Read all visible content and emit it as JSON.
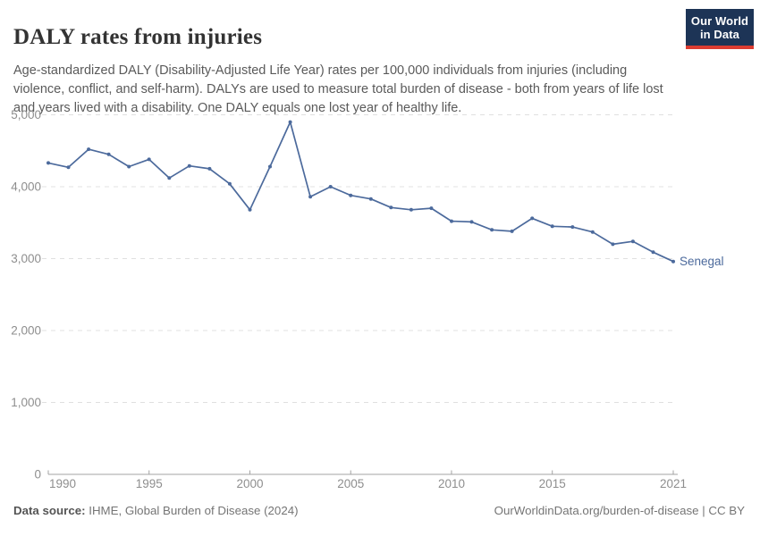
{
  "header": {
    "title": "DALY rates from injuries",
    "subtitle": "Age-standardized DALY (Disability-Adjusted Life Year) rates per 100,000 individuals from injuries (including violence, conflict, and self-harm). DALYs are used to measure total burden of disease - both from years of life lost and years lived with a disability. One DALY equals one lost year of healthy life."
  },
  "logo": {
    "line1": "Our World",
    "line2": "in Data",
    "bg_color": "#1d3456",
    "bar_color": "#dc3c31"
  },
  "chart_data": {
    "type": "line",
    "title": "DALY rates from injuries",
    "series": [
      {
        "name": "Senegal",
        "color": "#4C6A9C",
        "x": [
          1990,
          1991,
          1992,
          1993,
          1994,
          1995,
          1996,
          1997,
          1998,
          1999,
          2000,
          2001,
          2002,
          2003,
          2004,
          2005,
          2006,
          2007,
          2008,
          2009,
          2010,
          2011,
          2012,
          2013,
          2014,
          2015,
          2016,
          2017,
          2018,
          2019,
          2020,
          2021
        ],
        "values": [
          4330,
          4270,
          4520,
          4450,
          4280,
          4380,
          4120,
          4290,
          4250,
          4040,
          3680,
          4280,
          4900,
          3860,
          4000,
          3880,
          3830,
          3710,
          3680,
          3700,
          3520,
          3510,
          3400,
          3380,
          3560,
          3450,
          3440,
          3370,
          3200,
          3240,
          3090,
          2960
        ]
      }
    ],
    "xlabel": "",
    "ylabel": "",
    "xlim": [
      1990,
      2021
    ],
    "ylim": [
      0,
      5000
    ],
    "grid": "horizontal-dashed",
    "legend_position": "end-of-line",
    "y_ticks": [
      {
        "value": 0,
        "label": "0"
      },
      {
        "value": 1000,
        "label": "1,000"
      },
      {
        "value": 2000,
        "label": "2,000"
      },
      {
        "value": 3000,
        "label": "3,000"
      },
      {
        "value": 4000,
        "label": "4,000"
      },
      {
        "value": 5000,
        "label": "5,000"
      }
    ],
    "x_ticks": [
      {
        "year": 1990,
        "label": "1990"
      },
      {
        "year": 1995,
        "label": "1995"
      },
      {
        "year": 2000,
        "label": "2000"
      },
      {
        "year": 2005,
        "label": "2005"
      },
      {
        "year": 2010,
        "label": "2010"
      },
      {
        "year": 2015,
        "label": "2015"
      },
      {
        "year": 2021,
        "label": "2021"
      }
    ],
    "colors": {
      "line": "#4C6A9C",
      "grid": "#e0e0e0",
      "axis": "#a3a3a3",
      "tick_label": "#8e8e8e"
    }
  },
  "footer": {
    "source_label": "Data source:",
    "source_text": " IHME, Global Burden of Disease (2024)",
    "license_text": "OurWorldinData.org/burden-of-disease | CC BY"
  }
}
